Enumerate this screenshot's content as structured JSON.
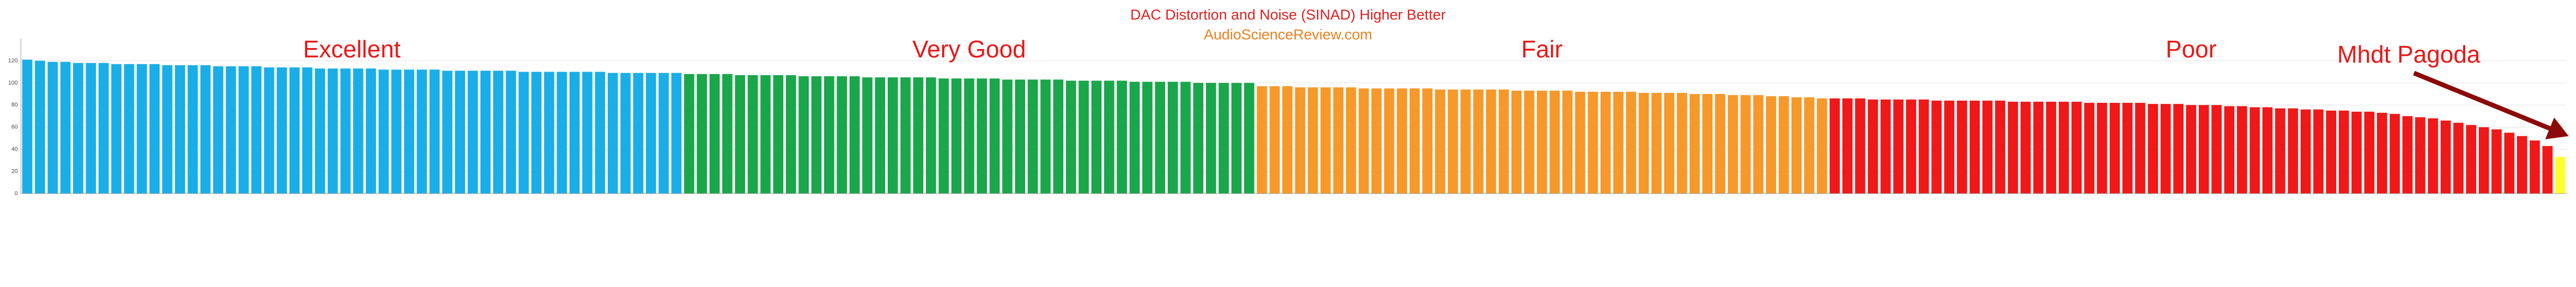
{
  "chart_data": {
    "type": "bar",
    "title": "DAC Distortion and Noise (SINAD) Higher Better",
    "subtitle": "AudioScienceReview.com",
    "ylim": [
      0,
      140
    ],
    "yticks": [
      0,
      20,
      40,
      60,
      80,
      100,
      120
    ],
    "grid": true,
    "groups": [
      {
        "name": "Excellent",
        "color": "#1aaee8",
        "values": [
          121,
          120,
          119,
          119,
          118,
          118,
          118,
          117,
          117,
          117,
          117,
          116,
          116,
          116,
          116,
          115,
          115,
          115,
          115,
          114,
          114,
          114,
          114,
          113,
          113,
          113,
          113,
          113,
          112,
          112,
          112,
          112,
          112,
          111,
          111,
          111,
          111,
          111,
          111,
          110,
          110,
          110,
          110,
          110,
          110,
          110,
          109,
          109,
          109,
          109,
          109,
          109
        ]
      },
      {
        "name": "Very Good",
        "color": "#1aa64a",
        "values": [
          108,
          108,
          108,
          108,
          107,
          107,
          107,
          107,
          107,
          106,
          106,
          106,
          106,
          106,
          105,
          105,
          105,
          105,
          105,
          105,
          104,
          104,
          104,
          104,
          104,
          103,
          103,
          103,
          103,
          103,
          102,
          102,
          102,
          102,
          102,
          101,
          101,
          101,
          101,
          101,
          100,
          100,
          100,
          100,
          100
        ]
      },
      {
        "name": "Fair",
        "color": "#f7982a",
        "values": [
          97,
          97,
          97,
          96,
          96,
          96,
          96,
          96,
          95,
          95,
          95,
          95,
          95,
          95,
          94,
          94,
          94,
          94,
          94,
          94,
          93,
          93,
          93,
          93,
          93,
          92,
          92,
          92,
          92,
          92,
          91,
          91,
          91,
          91,
          90,
          90,
          90,
          89,
          89,
          89,
          88,
          88,
          87,
          87,
          86
        ]
      },
      {
        "name": "Poor",
        "color": "#f01818",
        "values": [
          86,
          86,
          86,
          85,
          85,
          85,
          85,
          85,
          84,
          84,
          84,
          84,
          84,
          84,
          83,
          83,
          83,
          83,
          83,
          83,
          82,
          82,
          82,
          82,
          82,
          81,
          81,
          81,
          80,
          80,
          80,
          79,
          79,
          78,
          78,
          77,
          77,
          76,
          76,
          75,
          75,
          74,
          74,
          73,
          72,
          70,
          69,
          68,
          66,
          64,
          62,
          60,
          58,
          55,
          52,
          48,
          43
        ]
      },
      {
        "name": "Mhdt Pagoda",
        "color": "#ffff33",
        "values": [
          33
        ]
      }
    ]
  }
}
